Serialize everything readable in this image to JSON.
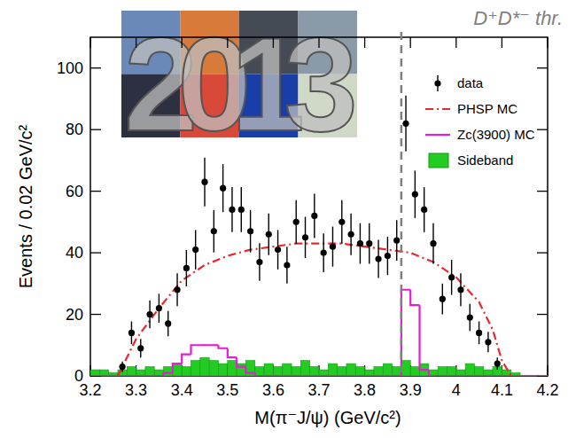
{
  "chart_data": {
    "type": "scatter",
    "x_label": "M(π⁻J/ψ) (GeV/c²)",
    "y_label": "Events / 0.02 GeV/c²",
    "xlim": [
      3.2,
      4.2
    ],
    "xticks": [
      3.2,
      3.3,
      3.4,
      3.5,
      3.6,
      3.7,
      3.8,
      3.9,
      {
        "value": 4,
        "label": "4"
      },
      4.1,
      4.2
    ],
    "ylim": [
      0,
      110
    ],
    "yticks": [
      0,
      20,
      40,
      60,
      80,
      100
    ],
    "legend": "top-right",
    "annotations": [
      {
        "text": "D⁺D*⁻ thr.",
        "x": 3.88
      },
      {
        "text": "2013"
      }
    ],
    "series": [
      {
        "name": "data",
        "type": "errorbar",
        "color": "#000000",
        "marker": "circle",
        "x": [
          3.27,
          3.29,
          3.31,
          3.33,
          3.35,
          3.37,
          3.39,
          3.41,
          3.43,
          3.45,
          3.47,
          3.49,
          3.51,
          3.53,
          3.55,
          3.57,
          3.59,
          3.61,
          3.63,
          3.65,
          3.67,
          3.69,
          3.71,
          3.73,
          3.75,
          3.77,
          3.79,
          3.81,
          3.83,
          3.85,
          3.87,
          3.89,
          3.91,
          3.93,
          3.95,
          3.97,
          3.99,
          4.01,
          4.03,
          4.05,
          4.07,
          4.09
        ],
        "values": [
          3,
          14,
          9,
          20,
          22,
          17,
          28,
          35,
          41,
          63,
          47,
          61,
          54,
          54,
          47,
          37,
          46,
          41,
          36,
          50,
          45,
          52,
          40,
          42,
          50,
          46,
          43,
          43,
          38,
          39,
          44,
          82,
          59,
          54,
          43,
          25,
          32,
          28,
          19,
          14,
          11,
          4
        ],
        "errors": [
          1.7,
          3.7,
          3,
          4.5,
          4.7,
          4.1,
          5.3,
          5.9,
          6.4,
          7.9,
          6.9,
          7.8,
          7.3,
          7.3,
          6.9,
          6.1,
          6.8,
          6.4,
          6,
          7.1,
          6.7,
          7.2,
          6.3,
          6.5,
          7.1,
          6.8,
          6.6,
          6.6,
          6.2,
          6.2,
          6.6,
          9.1,
          7.7,
          7.3,
          6.6,
          5,
          5.7,
          5.3,
          4.4,
          3.7,
          3.3,
          2
        ]
      },
      {
        "name": "PHSP MC",
        "type": "line",
        "color": "#e8282c",
        "line_style": "dashdot",
        "x": [
          3.26,
          3.3,
          3.35,
          3.4,
          3.45,
          3.5,
          3.55,
          3.6,
          3.65,
          3.7,
          3.75,
          3.8,
          3.85,
          3.9,
          3.95,
          4.0,
          4.05,
          4.08,
          4.1,
          4.12
        ],
        "values": [
          0,
          12,
          22,
          31,
          36,
          39,
          41,
          42,
          43,
          43,
          43,
          42,
          41,
          40,
          37,
          32,
          24,
          15,
          5,
          0
        ]
      },
      {
        "name": "Zc(3900) MC",
        "type": "step",
        "color": "#e020d0",
        "line_style": "solid",
        "bins": [
          3.2,
          3.22,
          3.24,
          3.26,
          3.28,
          3.3,
          3.32,
          3.34,
          3.36,
          3.38,
          3.4,
          3.42,
          3.44,
          3.46,
          3.48,
          3.5,
          3.52,
          3.54,
          3.56,
          3.58,
          3.6,
          3.62,
          3.64,
          3.66,
          3.68,
          3.7,
          3.72,
          3.74,
          3.76,
          3.78,
          3.8,
          3.82,
          3.84,
          3.86,
          3.88,
          3.9,
          3.92,
          3.94,
          3.96,
          3.98,
          4.0,
          4.02,
          4.04,
          4.06,
          4.08,
          4.1,
          4.12,
          4.14,
          4.16,
          4.18,
          4.2
        ],
        "values": [
          0,
          0,
          0,
          0,
          0,
          0,
          0,
          0,
          1,
          4,
          7,
          10,
          10,
          10,
          9,
          6,
          3,
          1,
          0,
          0,
          0,
          0,
          0,
          0,
          0,
          0,
          0,
          0,
          0,
          0,
          0,
          0,
          0,
          0,
          28,
          23,
          2,
          0,
          0,
          0,
          0,
          0,
          0,
          0,
          0,
          0,
          0,
          0,
          0,
          0
        ]
      },
      {
        "name": "Sideband",
        "type": "bar",
        "color": "#22cc22",
        "bins": [
          3.2,
          3.22,
          3.24,
          3.26,
          3.28,
          3.3,
          3.32,
          3.34,
          3.36,
          3.38,
          3.4,
          3.42,
          3.44,
          3.46,
          3.48,
          3.5,
          3.52,
          3.54,
          3.56,
          3.58,
          3.6,
          3.62,
          3.64,
          3.66,
          3.68,
          3.7,
          3.72,
          3.74,
          3.76,
          3.78,
          3.8,
          3.82,
          3.84,
          3.86,
          3.88,
          3.9,
          3.92,
          3.94,
          3.96,
          3.98,
          4.0,
          4.02,
          4.04,
          4.06,
          4.08,
          4.1,
          4.12,
          4.14,
          4.16,
          4.18,
          4.2
        ],
        "values": [
          2,
          2,
          1,
          2,
          3,
          2,
          3,
          2,
          3,
          4,
          3,
          5,
          6,
          5,
          4,
          5,
          4,
          5,
          3,
          4,
          3,
          4,
          3,
          5,
          3,
          2,
          4,
          3,
          4,
          3,
          2,
          3,
          4,
          3,
          5,
          3,
          4,
          2,
          3,
          3,
          2,
          4,
          3,
          2,
          3,
          2,
          1,
          0,
          0,
          0
        ]
      }
    ]
  }
}
